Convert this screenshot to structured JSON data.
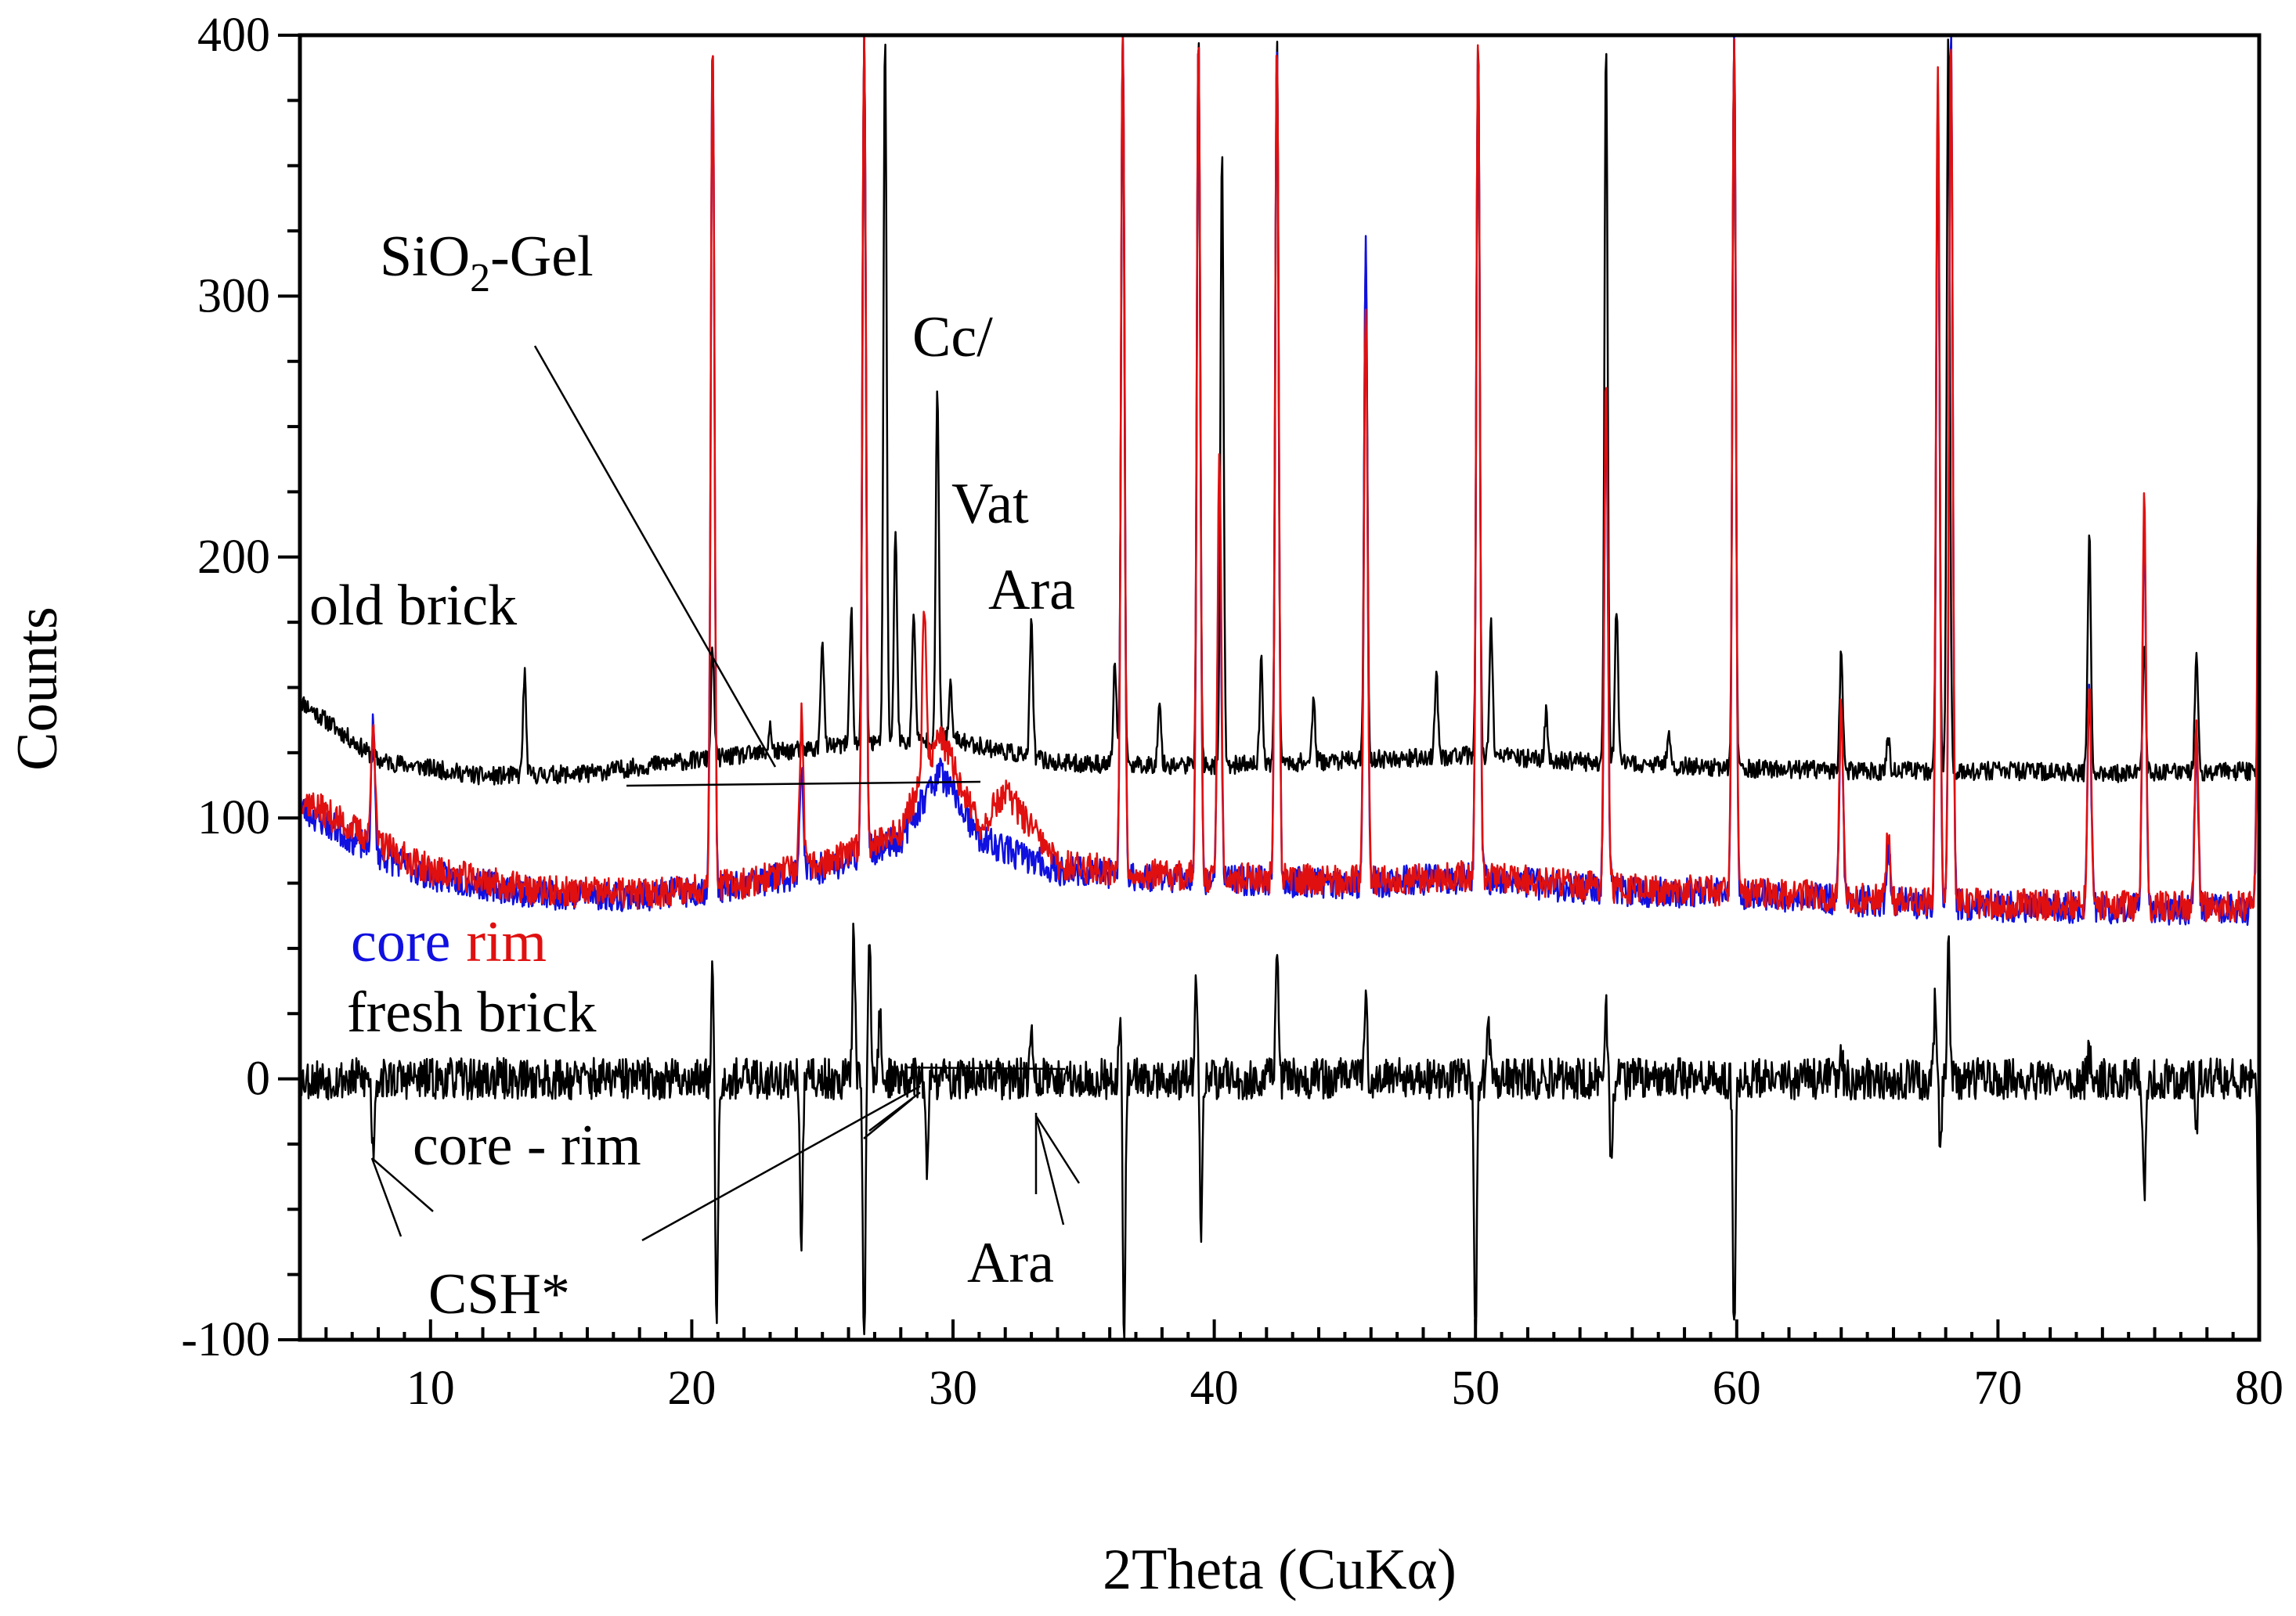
{
  "chart_data": {
    "type": "line",
    "title": "",
    "xlabel": "2Theta (CuKα)",
    "ylabel": "Counts",
    "xlim": [
      5,
      80
    ],
    "ylim": [
      -100,
      400
    ],
    "xticks": [
      10,
      20,
      30,
      40,
      50,
      60,
      70,
      80
    ],
    "xtick_labels": [
      "10",
      "20",
      "30",
      "40",
      "50",
      "60",
      "70",
      "80"
    ],
    "yticks": [
      -100,
      0,
      100,
      200,
      300,
      400
    ],
    "ytick_labels": [
      "-100",
      "0",
      "100",
      "200",
      "300",
      "400"
    ],
    "grid": false,
    "colors": {
      "old brick": "#000000",
      "core": "#1010e0",
      "rim": "#e01010",
      "core - rim": "#000000"
    },
    "series": [
      {
        "name": "old brick",
        "color": "#000000",
        "baseline": [
          [
            5,
            145
          ],
          [
            8,
            122
          ],
          [
            12,
            116
          ],
          [
            16,
            117
          ],
          [
            19,
            121
          ],
          [
            22,
            124
          ],
          [
            26,
            128
          ],
          [
            30,
            130
          ],
          [
            34,
            121
          ],
          [
            40,
            120
          ],
          [
            45,
            122
          ],
          [
            50,
            124
          ],
          [
            55,
            121
          ],
          [
            60,
            119
          ],
          [
            65,
            118
          ],
          [
            70,
            118
          ],
          [
            75,
            117
          ],
          [
            80,
            118
          ]
        ],
        "peaks": [
          [
            13.6,
            155
          ],
          [
            20.8,
            165
          ],
          [
            23.0,
            135
          ],
          [
            25.0,
            170
          ],
          [
            26.1,
            180
          ],
          [
            26.6,
            400
          ],
          [
            27.4,
            400
          ],
          [
            27.8,
            210
          ],
          [
            28.5,
            180
          ],
          [
            29.4,
            262
          ],
          [
            29.9,
            150
          ],
          [
            33.0,
            175
          ],
          [
            36.2,
            160
          ],
          [
            36.5,
            400
          ],
          [
            37.9,
            145
          ],
          [
            39.4,
            400
          ],
          [
            40.3,
            355
          ],
          [
            41.8,
            160
          ],
          [
            42.4,
            400
          ],
          [
            43.8,
            145
          ],
          [
            45.8,
            315
          ],
          [
            48.5,
            155
          ],
          [
            50.1,
            400
          ],
          [
            50.6,
            175
          ],
          [
            52.7,
            140
          ],
          [
            55.0,
            400
          ],
          [
            55.4,
            180
          ],
          [
            57.4,
            135
          ],
          [
            59.9,
            400
          ],
          [
            64.0,
            165
          ],
          [
            65.8,
            130
          ],
          [
            67.7,
            380
          ],
          [
            68.1,
            400
          ],
          [
            73.5,
            210
          ],
          [
            75.6,
            165
          ],
          [
            77.6,
            165
          ],
          [
            80.0,
            130
          ]
        ]
      },
      {
        "name": "core",
        "color": "#1010e0",
        "baseline": [
          [
            5,
            104
          ],
          [
            8,
            86
          ],
          [
            10,
            78
          ],
          [
            14,
            71
          ],
          [
            18,
            70
          ],
          [
            22,
            74
          ],
          [
            25.5,
            82
          ],
          [
            28,
            92
          ],
          [
            29.5,
            118
          ],
          [
            31,
            92
          ],
          [
            34,
            80
          ],
          [
            38,
            77
          ],
          [
            45,
            75
          ],
          [
            50,
            77
          ],
          [
            55,
            72
          ],
          [
            60,
            71
          ],
          [
            65,
            68
          ],
          [
            70,
            66
          ],
          [
            75,
            65
          ],
          [
            80,
            65
          ]
        ],
        "peaks": [
          [
            7.8,
            135
          ],
          [
            20.8,
            400
          ],
          [
            24.2,
            120
          ],
          [
            26.6,
            400
          ],
          [
            36.5,
            400
          ],
          [
            39.4,
            400
          ],
          [
            40.2,
            225
          ],
          [
            42.4,
            400
          ],
          [
            45.8,
            318
          ],
          [
            50.1,
            400
          ],
          [
            55.0,
            265
          ],
          [
            59.9,
            400
          ],
          [
            64.0,
            140
          ],
          [
            65.8,
            90
          ],
          [
            67.7,
            370
          ],
          [
            68.2,
            400
          ],
          [
            73.5,
            150
          ],
          [
            75.6,
            215
          ],
          [
            77.6,
            128
          ],
          [
            80.0,
            245
          ]
        ]
      },
      {
        "name": "rim",
        "color": "#e01010",
        "baseline": [
          [
            5,
            108
          ],
          [
            8,
            90
          ],
          [
            10,
            80
          ],
          [
            14,
            72
          ],
          [
            18,
            71
          ],
          [
            22,
            75
          ],
          [
            25.5,
            84
          ],
          [
            28,
            95
          ],
          [
            29.5,
            132
          ],
          [
            31,
            96
          ],
          [
            32,
            110
          ],
          [
            34,
            82
          ],
          [
            38,
            78
          ],
          [
            45,
            76
          ],
          [
            50,
            78
          ],
          [
            55,
            73
          ],
          [
            60,
            72
          ],
          [
            65,
            69
          ],
          [
            70,
            67
          ],
          [
            75,
            66
          ],
          [
            80,
            66
          ]
        ],
        "peaks": [
          [
            7.8,
            140
          ],
          [
            20.8,
            400
          ],
          [
            24.2,
            138
          ],
          [
            26.6,
            400
          ],
          [
            28.9,
            180
          ],
          [
            36.5,
            400
          ],
          [
            39.4,
            400
          ],
          [
            40.2,
            240
          ],
          [
            42.4,
            400
          ],
          [
            45.8,
            300
          ],
          [
            50.1,
            400
          ],
          [
            55.0,
            270
          ],
          [
            59.9,
            400
          ],
          [
            64.0,
            145
          ],
          [
            65.8,
            95
          ],
          [
            67.7,
            390
          ],
          [
            68.2,
            400
          ],
          [
            73.5,
            155
          ],
          [
            75.6,
            222
          ],
          [
            77.6,
            132
          ],
          [
            80.0,
            250
          ]
        ]
      },
      {
        "name": "core - rim",
        "color": "#000000",
        "baseline": [
          [
            5,
            0
          ],
          [
            80,
            0
          ]
        ],
        "peaks": [
          [
            7.8,
            -28
          ],
          [
            20.8,
            48
          ],
          [
            20.95,
            -100
          ],
          [
            24.2,
            -65
          ],
          [
            26.2,
            60
          ],
          [
            26.6,
            -100
          ],
          [
            26.8,
            55
          ],
          [
            27.2,
            25
          ],
          [
            29.0,
            -35
          ],
          [
            33.0,
            18
          ],
          [
            36.4,
            28
          ],
          [
            36.55,
            -100
          ],
          [
            39.3,
            38
          ],
          [
            39.5,
            -60
          ],
          [
            42.4,
            56
          ],
          [
            45.8,
            38
          ],
          [
            50.0,
            -100
          ],
          [
            50.5,
            20
          ],
          [
            55.0,
            25
          ],
          [
            55.2,
            -35
          ],
          [
            59.9,
            -100
          ],
          [
            64.0,
            12
          ],
          [
            67.6,
            32
          ],
          [
            67.8,
            -25
          ],
          [
            68.1,
            55
          ],
          [
            73.5,
            10
          ],
          [
            75.6,
            -48
          ],
          [
            77.6,
            -18
          ],
          [
            80.0,
            -80
          ]
        ]
      }
    ],
    "annotations": [
      {
        "text_parts": [
          "SiO",
          "2",
          "-Gel"
        ],
        "kind": "label"
      },
      {
        "text": "Cc/",
        "kind": "label"
      },
      {
        "text": "Vat",
        "kind": "label"
      },
      {
        "text": "Ara",
        "kind": "label",
        "id": "ara-top"
      },
      {
        "text": "old brick",
        "kind": "series-label"
      },
      {
        "text": "core",
        "kind": "series-label",
        "color": "#1010e0"
      },
      {
        "text": "rim",
        "kind": "series-label",
        "color": "#e01010"
      },
      {
        "text": "fresh brick",
        "kind": "series-label"
      },
      {
        "text": "core - rim",
        "kind": "series-label"
      },
      {
        "text": "CSH*",
        "kind": "label"
      },
      {
        "text": "Ara",
        "kind": "label",
        "id": "ara-bottom"
      }
    ]
  }
}
